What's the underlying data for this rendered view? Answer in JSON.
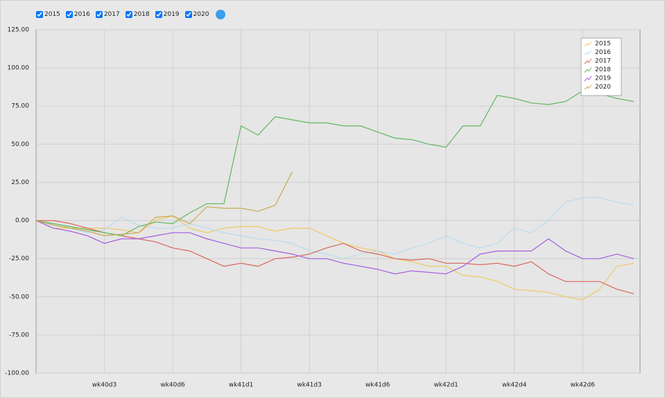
{
  "controls": {
    "checkboxes": [
      "2015",
      "2016",
      "2017",
      "2018",
      "2019",
      "2020"
    ]
  },
  "chart_data": {
    "type": "line",
    "x": [
      0,
      0.25,
      0.5,
      0.75,
      1,
      1.25,
      1.5,
      1.75,
      2,
      2.25,
      2.5,
      2.75,
      3,
      3.25,
      3.5,
      3.75,
      4,
      4.25,
      4.5,
      4.75,
      5,
      5.25,
      5.5,
      5.75,
      6,
      6.25,
      6.5,
      6.75,
      7,
      7.25,
      7.5,
      7.75,
      8,
      8.25,
      8.5,
      8.75
    ],
    "xlim": [
      0,
      8.84
    ],
    "xticks": [
      {
        "value": 1,
        "label": "wk40d3"
      },
      {
        "value": 2,
        "label": "wk40d6"
      },
      {
        "value": 3,
        "label": "wk41d1"
      },
      {
        "value": 4,
        "label": "wk41d3"
      },
      {
        "value": 5,
        "label": "wk41d6"
      },
      {
        "value": 6,
        "label": "wk42d1"
      },
      {
        "value": 7,
        "label": "wk42d4"
      },
      {
        "value": 8,
        "label": "wk42d6"
      }
    ],
    "ylim": [
      -100,
      125
    ],
    "yticks": [
      {
        "value": -100,
        "label": "-100.00"
      },
      {
        "value": -75,
        "label": "-75.00"
      },
      {
        "value": -50,
        "label": "-50.00"
      },
      {
        "value": -25,
        "label": "-25.00"
      },
      {
        "value": 0,
        "label": "0.00"
      },
      {
        "value": 25,
        "label": "25.00"
      },
      {
        "value": 50,
        "label": "50.00"
      },
      {
        "value": 75,
        "label": "75.00"
      },
      {
        "value": 100,
        "label": "100.00"
      },
      {
        "value": 125,
        "label": "125.00"
      }
    ],
    "grid": true,
    "legend": "top-right",
    "series": [
      {
        "name": "2015",
        "color": "#f0c860",
        "values": [
          0,
          -5,
          -5,
          -5,
          -5,
          -6,
          -8,
          0,
          3,
          -5,
          -8,
          -5,
          -4,
          -4,
          -7,
          -5,
          -5,
          -10,
          -15,
          -18,
          -20,
          -25,
          -27,
          -30,
          -30,
          -36,
          -37,
          -40,
          -45,
          -46,
          -47,
          -50,
          -52,
          -45,
          -30,
          -28
        ]
      },
      {
        "name": "2016",
        "color": "#b8dcf0",
        "values": [
          0,
          -3,
          -5,
          -8,
          -6,
          2,
          -3,
          -5,
          -5,
          -2,
          -5,
          -8,
          -10,
          -12,
          -13,
          -15,
          -20,
          -22,
          -25,
          -22,
          -20,
          -22,
          -18,
          -15,
          -10,
          -15,
          -18,
          -15,
          -5,
          -8,
          0,
          12,
          15,
          15,
          12,
          10
        ]
      },
      {
        "name": "2017",
        "color": "#d9645a",
        "values": [
          0,
          0,
          -2,
          -5,
          -8,
          -10,
          -12,
          -14,
          -18,
          -20,
          -25,
          -30,
          -28,
          -30,
          -25,
          -24,
          -22,
          -18,
          -15,
          -20,
          -22,
          -25,
          -26,
          -25,
          -28,
          -28,
          -29,
          -28,
          -30,
          -27,
          -35,
          -40,
          -40,
          -40,
          -45,
          -48
        ]
      },
      {
        "name": "2018",
        "color": "#5cb85c",
        "values": [
          0,
          -2,
          -4,
          -6,
          -8,
          -10,
          -4,
          -1,
          -2,
          5,
          11,
          11,
          62,
          56,
          68,
          66,
          64,
          64,
          62,
          62,
          58,
          54,
          53,
          50,
          48,
          62,
          62,
          82,
          80,
          77,
          76,
          78,
          85,
          83,
          80,
          78
        ]
      },
      {
        "name": "2019",
        "color": "#a45ce0",
        "values": [
          0,
          -5,
          -7,
          -10,
          -15,
          -12,
          -12,
          -10,
          -8,
          -8,
          -12,
          -15,
          -18,
          -18,
          -20,
          -22,
          -25,
          -25,
          -28,
          -30,
          -32,
          -35,
          -33,
          -34,
          -35,
          -30,
          -22,
          -20,
          -20,
          -20,
          -12,
          -20,
          -25,
          -25,
          -22,
          -25
        ]
      },
      {
        "name": "2020",
        "color": "#c8a850",
        "values": [
          0,
          -3,
          -5,
          -7,
          -10,
          -9,
          -8,
          2,
          3,
          -2,
          9,
          8,
          8,
          6,
          10,
          32,
          null,
          null,
          null,
          null,
          null,
          null,
          null,
          null,
          null,
          null,
          null,
          null,
          null,
          null,
          null,
          null,
          null,
          null,
          null,
          null
        ]
      }
    ]
  }
}
